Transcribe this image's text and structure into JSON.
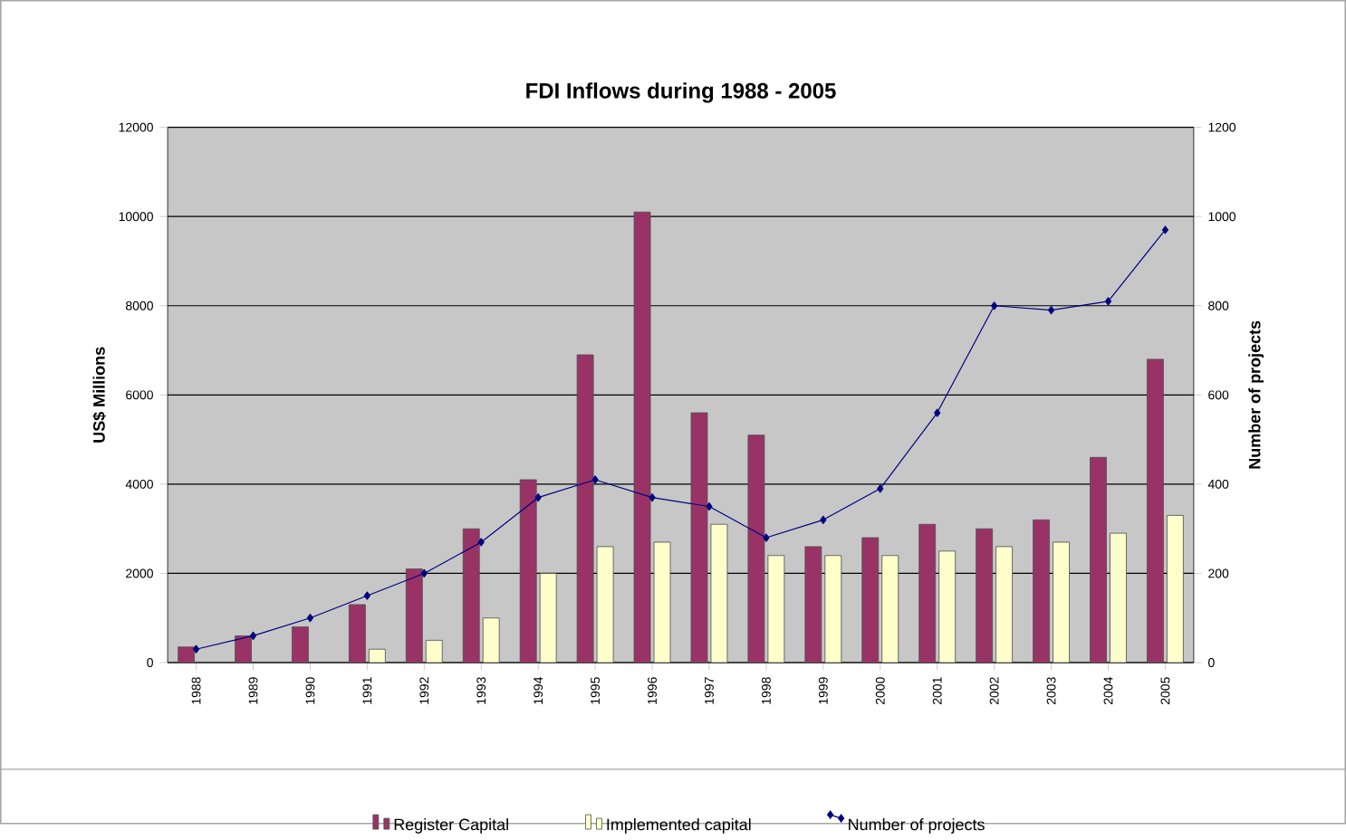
{
  "chart_data": {
    "type": "bar",
    "title": "FDI Inflows during 1988 - 2005",
    "ylabel": "US$ Millions",
    "y2label": "Number of projects",
    "categories": [
      "1988",
      "1989",
      "1990",
      "1991",
      "1992",
      "1993",
      "1994",
      "1995",
      "1996",
      "1997",
      "1998",
      "1999",
      "2000",
      "2001",
      "2002",
      "2003",
      "2004",
      "2005"
    ],
    "series": [
      {
        "name": "Register Capital",
        "color": "#993366",
        "values": [
          350,
          600,
          800,
          1300,
          2100,
          3000,
          4100,
          6900,
          10100,
          5600,
          5100,
          2600,
          2800,
          3100,
          3000,
          3200,
          4600,
          6800
        ]
      },
      {
        "name": "Implemented capital",
        "color": "#ffffcc",
        "values": [
          null,
          null,
          null,
          300,
          500,
          1000,
          2000,
          2600,
          2700,
          3100,
          2400,
          2400,
          2400,
          2500,
          2600,
          2700,
          2900,
          3300
        ]
      },
      {
        "name": "Number of projects",
        "type": "line",
        "axis": "y2",
        "color": "#000080",
        "values": [
          30,
          60,
          100,
          150,
          200,
          270,
          370,
          410,
          370,
          350,
          280,
          320,
          390,
          560,
          800,
          790,
          810,
          970
        ]
      }
    ],
    "ylim": [
      0,
      12000
    ],
    "yticks": [
      0,
      2000,
      4000,
      6000,
      8000,
      10000,
      12000
    ],
    "y2lim": [
      0,
      1200
    ],
    "y2ticks": [
      0,
      200,
      400,
      600,
      800,
      1000,
      1200
    ],
    "grid": "y",
    "legend": "bottom",
    "marker": "diamond"
  }
}
